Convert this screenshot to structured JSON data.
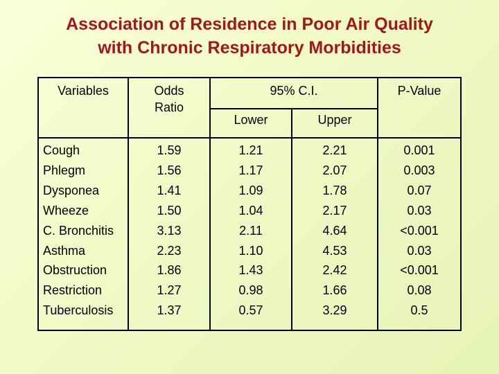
{
  "title": {
    "line1": "Association of Residence in Poor Air Quality",
    "line2": "with Chronic Respiratory Morbidities"
  },
  "headers": {
    "variables": "Variables",
    "odds_ratio_line1": "Odds",
    "odds_ratio_line2": "Ratio",
    "ci": "95% C.I.",
    "lower": "Lower",
    "upper": "Upper",
    "p_value": "P-Value"
  },
  "rows": [
    {
      "variable": "Cough",
      "odds_ratio": "1.59",
      "lower": "1.21",
      "upper": "2.21",
      "p_value": "0.001"
    },
    {
      "variable": "Phlegm",
      "odds_ratio": "1.56",
      "lower": "1.17",
      "upper": "2.07",
      "p_value": "0.003"
    },
    {
      "variable": "Dysponea",
      "odds_ratio": "1.41",
      "lower": "1.09",
      "upper": "1.78",
      "p_value": "0.07"
    },
    {
      "variable": "Wheeze",
      "odds_ratio": "1.50",
      "lower": "1.04",
      "upper": "2.17",
      "p_value": "0.03"
    },
    {
      "variable": "C. Bronchitis",
      "odds_ratio": "3.13",
      "lower": "2.11",
      "upper": "4.64",
      "p_value": "<0.001"
    },
    {
      "variable": "Asthma",
      "odds_ratio": "2.23",
      "lower": "1.10",
      "upper": "4.53",
      "p_value": "0.03"
    },
    {
      "variable": "Obstruction",
      "odds_ratio": "1.86",
      "lower": "1.43",
      "upper": "2.42",
      "p_value": "<0.001"
    },
    {
      "variable": "Restriction",
      "odds_ratio": "1.27",
      "lower": "0.98",
      "upper": "1.66",
      "p_value": "0.08"
    },
    {
      "variable": "Tuberculosis",
      "odds_ratio": "1.37",
      "lower": "0.57",
      "upper": "3.29",
      "p_value": "0.5"
    }
  ]
}
